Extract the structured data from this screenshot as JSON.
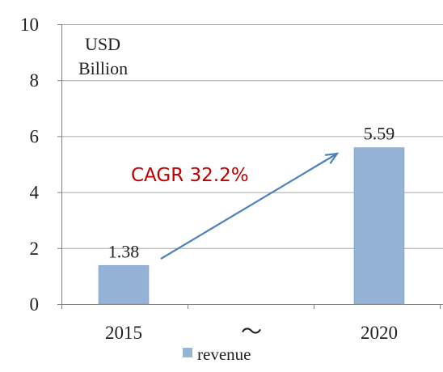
{
  "chart_data": {
    "type": "bar",
    "categories": [
      "2015",
      "",
      "2020"
    ],
    "series": [
      {
        "name": "revenue",
        "values": [
          1.38,
          null,
          5.59
        ]
      }
    ],
    "data_labels": [
      "1.38",
      "",
      "5.59"
    ],
    "between_label": "～",
    "unit_label_line1": "USD",
    "unit_label_line2": "Billion",
    "annotation": "CAGR 32.2%",
    "ylim": [
      0,
      10
    ],
    "yticks": [
      0,
      2,
      4,
      6,
      8,
      10
    ],
    "grid": true,
    "legend_position": "bottom",
    "colors": {
      "bar": "#95B3D7",
      "bar_edge": "#7F9FC6",
      "arrow": "#4F81BD",
      "annotation": "#C00000",
      "grid": "#A6A6A6",
      "axis": "#808080"
    }
  }
}
